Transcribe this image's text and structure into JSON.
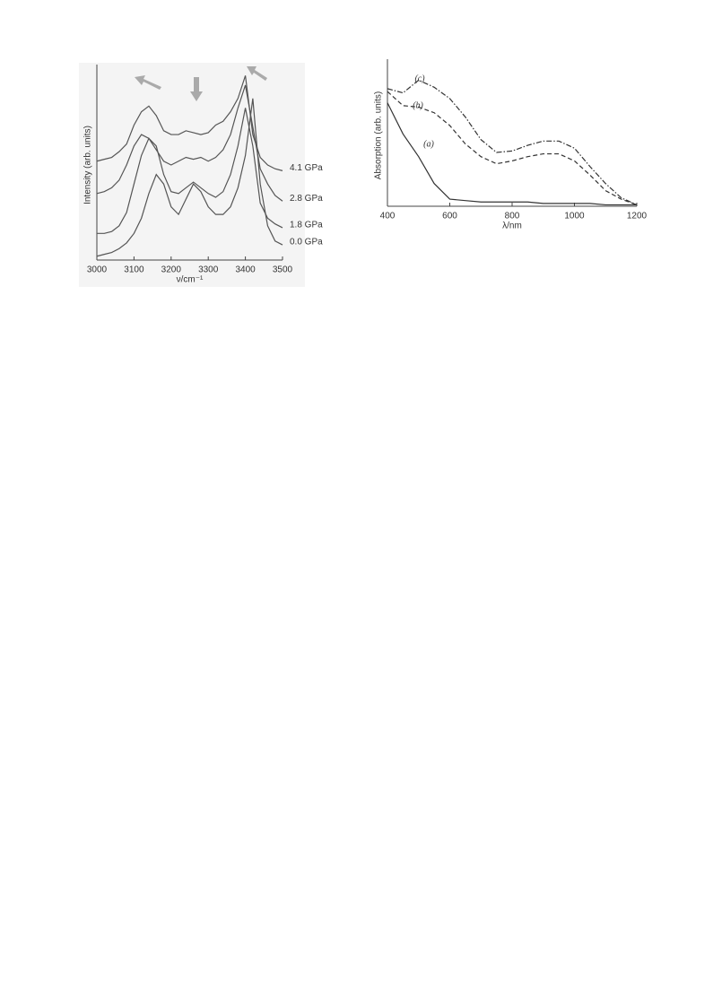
{
  "chart_data": [
    {
      "type": "line",
      "y_label": "Intensity (arb. units)",
      "x_label": "ν/cm⁻¹",
      "x": [
        3000,
        3020,
        3040,
        3060,
        3080,
        3100,
        3120,
        3140,
        3160,
        3180,
        3200,
        3220,
        3240,
        3260,
        3280,
        3300,
        3320,
        3340,
        3360,
        3380,
        3400,
        3420,
        3440,
        3460,
        3480,
        3500
      ],
      "xlim": [
        3000,
        3500
      ],
      "xticks": [
        3000,
        3100,
        3200,
        3300,
        3400,
        3500
      ],
      "ylim": [
        0,
        100
      ],
      "series": [
        {
          "name": "4.1 GPa",
          "color": "#555555",
          "values": [
            52,
            53,
            54,
            57,
            61,
            71,
            78,
            81,
            76,
            68,
            66,
            66,
            68,
            67,
            66,
            67,
            71,
            73,
            78,
            85,
            97,
            66,
            54,
            50,
            48,
            47
          ]
        },
        {
          "name": "2.8 GPa",
          "color": "#555555",
          "values": [
            35,
            36,
            38,
            42,
            50,
            60,
            66,
            64,
            58,
            52,
            50,
            52,
            54,
            53,
            54,
            52,
            54,
            58,
            66,
            80,
            92,
            70,
            48,
            40,
            34,
            31
          ]
        },
        {
          "name": "1.8 GPa",
          "color": "#555555",
          "values": [
            14,
            14,
            15,
            18,
            25,
            40,
            55,
            64,
            60,
            45,
            36,
            35,
            38,
            41,
            38,
            35,
            33,
            36,
            45,
            60,
            80,
            60,
            30,
            22,
            19,
            17
          ]
        },
        {
          "name": "0.0 GPa",
          "color": "#555555",
          "values": [
            2,
            3,
            4,
            6,
            9,
            14,
            22,
            35,
            45,
            40,
            28,
            24,
            32,
            40,
            36,
            28,
            24,
            24,
            28,
            38,
            55,
            85,
            40,
            18,
            10,
            8
          ]
        }
      ]
    },
    {
      "type": "line",
      "y_label": "Absorption (arb. units)",
      "x_label": "λ/nm",
      "x": [
        400,
        450,
        500,
        550,
        600,
        650,
        700,
        750,
        800,
        850,
        900,
        950,
        1000,
        1050,
        1100,
        1150,
        1200
      ],
      "xlim": [
        400,
        1200
      ],
      "xticks": [
        400,
        600,
        800,
        1000,
        1200
      ],
      "ylim": [
        0,
        100
      ],
      "series": [
        {
          "name": "(c)",
          "color": "#333333",
          "style": "dashdot",
          "values": [
            83,
            80,
            89,
            84,
            76,
            63,
            47,
            38,
            39,
            43,
            46,
            46,
            41,
            28,
            16,
            6,
            1
          ]
        },
        {
          "name": "(b)",
          "color": "#333333",
          "style": "dashed",
          "values": [
            81,
            71,
            70,
            66,
            57,
            44,
            35,
            30,
            32,
            35,
            37,
            37,
            32,
            22,
            11,
            5,
            1
          ]
        },
        {
          "name": "(a)",
          "color": "#333333",
          "style": "solid",
          "values": [
            73,
            51,
            35,
            16,
            5,
            4,
            3,
            3,
            3,
            3,
            2,
            2,
            2,
            2,
            1,
            1,
            1
          ]
        }
      ]
    }
  ]
}
